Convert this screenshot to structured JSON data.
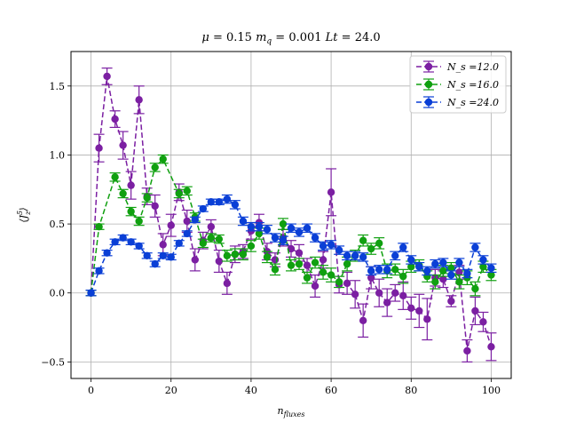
{
  "chart_data": {
    "type": "line",
    "title": "μ = 0.15 m_q = 0.001 Lt = 24.0",
    "xlabel": "n_fluxes",
    "ylabel": "⟨J_z^5⟩",
    "xlim": [
      -5,
      105
    ],
    "ylim": [
      -0.62,
      1.75
    ],
    "xticks": [
      0,
      20,
      40,
      60,
      80,
      100
    ],
    "yticks": [
      -0.5,
      0.0,
      0.5,
      1.0,
      1.5
    ],
    "xtick_labels": [
      "0",
      "20",
      "40",
      "60",
      "80",
      "100"
    ],
    "ytick_labels": [
      "−0.5",
      "0.0",
      "0.5",
      "1.0",
      "1.5"
    ],
    "grid": true,
    "legend_position": "top-right",
    "series": [
      {
        "name": "N_s =12.0",
        "color": "#7b1fa2",
        "marker": "circle",
        "line": "dashed",
        "x": [
          0,
          2,
          4,
          6,
          8,
          10,
          12,
          14,
          16,
          18,
          20,
          22,
          24,
          26,
          28,
          30,
          32,
          34,
          36,
          38,
          40,
          42,
          44,
          46,
          48,
          50,
          52,
          54,
          56,
          58,
          60,
          62,
          64,
          66,
          68,
          70,
          72,
          74,
          76,
          78,
          80,
          82,
          84,
          86,
          88,
          90,
          92,
          94,
          96,
          98,
          100
        ],
        "y": [
          0.0,
          1.05,
          1.57,
          1.26,
          1.07,
          0.78,
          1.4,
          0.7,
          0.63,
          0.35,
          0.49,
          0.73,
          0.52,
          0.24,
          0.38,
          0.48,
          0.23,
          0.07,
          0.28,
          0.3,
          0.45,
          0.51,
          0.3,
          0.24,
          0.4,
          0.32,
          0.29,
          0.2,
          0.05,
          0.24,
          0.73,
          0.06,
          0.07,
          -0.01,
          -0.2,
          0.11,
          0.0,
          -0.07,
          0.0,
          -0.02,
          -0.11,
          -0.13,
          -0.19,
          0.11,
          0.1,
          -0.06,
          0.15,
          -0.42,
          -0.13,
          -0.21,
          -0.39
        ],
        "err": [
          0.02,
          0.1,
          0.06,
          0.06,
          0.1,
          0.1,
          0.1,
          0.06,
          0.08,
          0.08,
          0.08,
          0.06,
          0.08,
          0.08,
          0.06,
          0.05,
          0.08,
          0.08,
          0.06,
          0.05,
          0.06,
          0.06,
          0.06,
          0.05,
          0.06,
          0.06,
          0.06,
          0.05,
          0.08,
          0.06,
          0.17,
          0.06,
          0.08,
          0.1,
          0.12,
          0.08,
          0.1,
          0.1,
          0.06,
          0.1,
          0.08,
          0.12,
          0.15,
          0.06,
          0.06,
          0.04,
          0.05,
          0.08,
          0.1,
          0.07,
          0.1
        ]
      },
      {
        "name": "N_s =16.0",
        "color": "#10a010",
        "marker": "circle",
        "line": "dashed",
        "x": [
          0,
          2,
          6,
          8,
          10,
          12,
          14,
          16,
          18,
          22,
          24,
          26,
          28,
          30,
          32,
          34,
          36,
          38,
          40,
          42,
          44,
          46,
          48,
          50,
          52,
          54,
          56,
          58,
          60,
          62,
          64,
          66,
          68,
          70,
          72,
          74,
          76,
          78,
          80,
          82,
          84,
          86,
          88,
          90,
          92,
          94,
          96,
          98,
          100
        ],
        "y": [
          0.0,
          0.48,
          0.84,
          0.72,
          0.59,
          0.52,
          0.69,
          0.91,
          0.97,
          0.72,
          0.74,
          0.55,
          0.36,
          0.4,
          0.39,
          0.27,
          0.28,
          0.28,
          0.34,
          0.43,
          0.26,
          0.17,
          0.5,
          0.2,
          0.21,
          0.11,
          0.22,
          0.15,
          0.13,
          0.08,
          0.21,
          0.27,
          0.38,
          0.32,
          0.36,
          0.16,
          0.17,
          0.12,
          0.19,
          0.2,
          0.12,
          0.08,
          0.16,
          0.18,
          0.08,
          0.11,
          0.03,
          0.19,
          0.13
        ],
        "err": [
          0.02,
          0.02,
          0.03,
          0.03,
          0.03,
          0.03,
          0.03,
          0.03,
          0.03,
          0.03,
          0.03,
          0.03,
          0.03,
          0.03,
          0.03,
          0.04,
          0.04,
          0.04,
          0.04,
          0.04,
          0.04,
          0.04,
          0.04,
          0.04,
          0.04,
          0.04,
          0.04,
          0.05,
          0.05,
          0.04,
          0.05,
          0.04,
          0.04,
          0.04,
          0.04,
          0.05,
          0.04,
          0.05,
          0.04,
          0.04,
          0.04,
          0.05,
          0.04,
          0.04,
          0.05,
          0.05,
          0.05,
          0.04,
          0.04
        ]
      },
      {
        "name": "N_s =24.0",
        "color": "#0a3fd6",
        "marker": "circle",
        "line": "dashed",
        "x": [
          0,
          2,
          4,
          6,
          8,
          10,
          12,
          14,
          16,
          18,
          20,
          22,
          24,
          26,
          28,
          30,
          32,
          34,
          36,
          38,
          40,
          42,
          44,
          46,
          48,
          50,
          52,
          54,
          56,
          58,
          60,
          62,
          64,
          66,
          68,
          70,
          72,
          74,
          76,
          78,
          80,
          82,
          84,
          86,
          88,
          90,
          92,
          94,
          96,
          98,
          100
        ],
        "y": [
          0.0,
          0.16,
          0.29,
          0.37,
          0.4,
          0.37,
          0.34,
          0.27,
          0.21,
          0.27,
          0.26,
          0.36,
          0.43,
          0.53,
          0.61,
          0.66,
          0.66,
          0.68,
          0.64,
          0.52,
          0.48,
          0.48,
          0.46,
          0.4,
          0.38,
          0.47,
          0.44,
          0.47,
          0.4,
          0.34,
          0.35,
          0.31,
          0.27,
          0.27,
          0.26,
          0.16,
          0.17,
          0.17,
          0.27,
          0.33,
          0.24,
          0.19,
          0.16,
          0.21,
          0.22,
          0.13,
          0.22,
          0.14,
          0.33,
          0.24,
          0.18
        ],
        "err": [
          0.02,
          0.02,
          0.02,
          0.02,
          0.02,
          0.02,
          0.02,
          0.02,
          0.02,
          0.02,
          0.02,
          0.02,
          0.02,
          0.02,
          0.02,
          0.02,
          0.02,
          0.03,
          0.03,
          0.03,
          0.03,
          0.03,
          0.03,
          0.03,
          0.03,
          0.03,
          0.03,
          0.03,
          0.03,
          0.03,
          0.03,
          0.03,
          0.03,
          0.03,
          0.03,
          0.03,
          0.03,
          0.03,
          0.03,
          0.03,
          0.03,
          0.03,
          0.03,
          0.03,
          0.03,
          0.03,
          0.03,
          0.03,
          0.03,
          0.03,
          0.03
        ]
      }
    ]
  }
}
